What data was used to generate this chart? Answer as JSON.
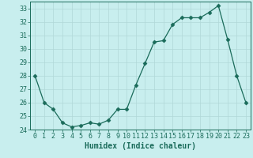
{
  "x": [
    0,
    1,
    2,
    3,
    4,
    5,
    6,
    7,
    8,
    9,
    10,
    11,
    12,
    13,
    14,
    15,
    16,
    17,
    18,
    19,
    20,
    21,
    22,
    23
  ],
  "y": [
    28,
    26,
    25.5,
    24.5,
    24.2,
    24.3,
    24.5,
    24.4,
    24.7,
    25.5,
    25.5,
    27.3,
    28.9,
    30.5,
    30.6,
    31.8,
    32.3,
    32.3,
    32.3,
    32.7,
    33.2,
    30.7,
    28,
    26
  ],
  "line_color": "#1a6b5a",
  "marker": "D",
  "marker_size": 2.5,
  "bg_color": "#c8eeee",
  "grid_color": "#b0d8d8",
  "xlabel": "Humidex (Indice chaleur)",
  "xlabel_fontsize": 7,
  "tick_fontsize": 6,
  "ylim": [
    24,
    33.5
  ],
  "xlim": [
    -0.5,
    23.5
  ],
  "yticks": [
    24,
    25,
    26,
    27,
    28,
    29,
    30,
    31,
    32,
    33
  ],
  "xticks": [
    0,
    1,
    2,
    3,
    4,
    5,
    6,
    7,
    8,
    9,
    10,
    11,
    12,
    13,
    14,
    15,
    16,
    17,
    18,
    19,
    20,
    21,
    22,
    23
  ]
}
